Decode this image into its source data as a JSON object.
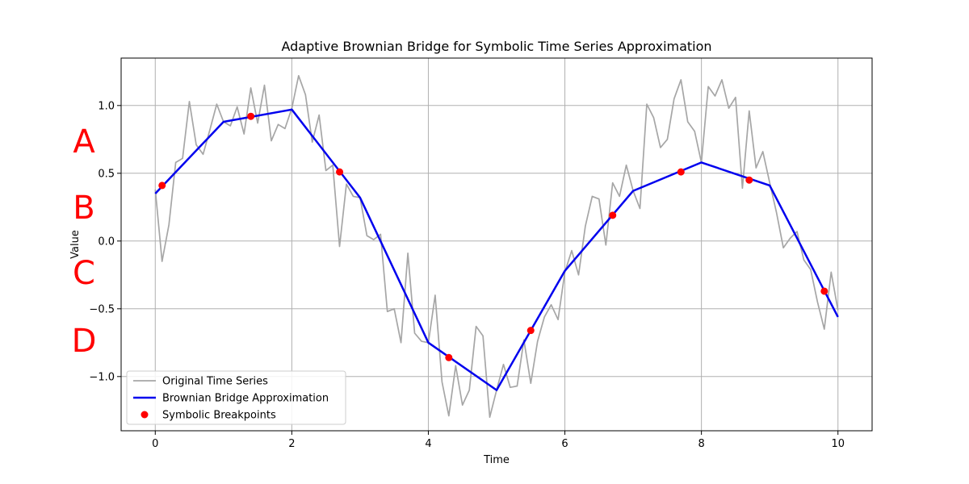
{
  "chart_data": {
    "type": "line",
    "title": "Adaptive Brownian Bridge for Symbolic Time Series Approximation",
    "xlabel": "Time",
    "ylabel": "Value",
    "xlim": [
      -0.5,
      10.5
    ],
    "ylim": [
      -1.4,
      1.35
    ],
    "xticks": [
      0,
      2,
      4,
      6,
      8,
      10
    ],
    "xtick_labels": [
      "0",
      "2",
      "4",
      "6",
      "8",
      "10"
    ],
    "yticks": [
      -1.0,
      -0.5,
      0.0,
      0.5,
      1.0
    ],
    "ytick_labels": [
      "−1.0",
      "−0.5",
      "0.0",
      "0.5",
      "1.0"
    ],
    "grid": true,
    "legend_position": "lower-left",
    "symbols": [
      "A",
      "B",
      "C",
      "D"
    ],
    "symbol_color": "#ff0000",
    "series": [
      {
        "name": "Original Time Series",
        "kind": "line",
        "color": "#a6a6a6",
        "x": [
          0,
          0.1,
          0.2,
          0.3,
          0.4,
          0.5,
          0.6,
          0.7,
          0.8,
          0.9,
          1.0,
          1.1,
          1.2,
          1.3,
          1.4,
          1.5,
          1.6,
          1.7,
          1.8,
          1.9,
          2.0,
          2.1,
          2.2,
          2.3,
          2.4,
          2.5,
          2.6,
          2.7,
          2.8,
          2.9,
          3.0,
          3.1,
          3.2,
          3.3,
          3.4,
          3.5,
          3.6,
          3.7,
          3.8,
          3.9,
          4.0,
          4.1,
          4.2,
          4.3,
          4.4,
          4.5,
          4.6,
          4.7,
          4.8,
          4.9,
          5.0,
          5.1,
          5.2,
          5.3,
          5.4,
          5.5,
          5.6,
          5.7,
          5.8,
          5.9,
          6.0,
          6.1,
          6.2,
          6.3,
          6.4,
          6.5,
          6.6,
          6.7,
          6.8,
          6.9,
          7.0,
          7.1,
          7.2,
          7.3,
          7.4,
          7.5,
          7.6,
          7.7,
          7.8,
          7.9,
          8.0,
          8.1,
          8.2,
          8.3,
          8.4,
          8.5,
          8.6,
          8.7,
          8.8,
          8.9,
          9.0,
          9.1,
          9.2,
          9.3,
          9.4,
          9.5,
          9.6,
          9.7,
          9.8,
          9.9,
          10.0
        ],
        "y": [
          0.38,
          -0.15,
          0.12,
          0.58,
          0.61,
          1.03,
          0.71,
          0.64,
          0.82,
          1.01,
          0.88,
          0.85,
          0.99,
          0.79,
          1.13,
          0.87,
          1.15,
          0.74,
          0.86,
          0.83,
          0.98,
          1.22,
          1.08,
          0.73,
          0.93,
          0.52,
          0.56,
          -0.04,
          0.42,
          0.33,
          0.32,
          0.04,
          0.01,
          0.05,
          -0.52,
          -0.5,
          -0.75,
          -0.09,
          -0.68,
          -0.74,
          -0.75,
          -0.4,
          -1.04,
          -1.29,
          -0.92,
          -1.21,
          -1.1,
          -0.63,
          -0.7,
          -1.3,
          -1.1,
          -0.91,
          -1.08,
          -1.07,
          -0.73,
          -1.05,
          -0.74,
          -0.56,
          -0.47,
          -0.58,
          -0.23,
          -0.07,
          -0.25,
          0.11,
          0.33,
          0.31,
          -0.03,
          0.43,
          0.33,
          0.56,
          0.37,
          0.24,
          1.01,
          0.91,
          0.69,
          0.75,
          1.05,
          1.19,
          0.88,
          0.81,
          0.58,
          1.14,
          1.07,
          1.19,
          0.98,
          1.06,
          0.39,
          0.96,
          0.54,
          0.66,
          0.43,
          0.21,
          -0.05,
          0.02,
          0.07,
          -0.14,
          -0.21,
          -0.45,
          -0.65,
          -0.23,
          -0.51
        ]
      },
      {
        "name": "Brownian Bridge Approximation",
        "kind": "line",
        "color": "#0000ee",
        "x": [
          0,
          1,
          2,
          3,
          4,
          5,
          6,
          7,
          8,
          9,
          10
        ],
        "y": [
          0.35,
          0.88,
          0.97,
          0.32,
          -0.75,
          -1.1,
          -0.22,
          0.37,
          0.58,
          0.41,
          -0.56
        ]
      },
      {
        "name": "Symbolic Breakpoints",
        "kind": "scatter",
        "color": "#ff0000",
        "x": [
          0.1,
          1.4,
          2.7,
          4.3,
          5.5,
          6.7,
          7.7,
          8.7,
          9.8
        ],
        "y": [
          0.41,
          0.92,
          0.51,
          -0.86,
          -0.66,
          0.19,
          0.51,
          0.45,
          -0.37
        ]
      }
    ]
  }
}
